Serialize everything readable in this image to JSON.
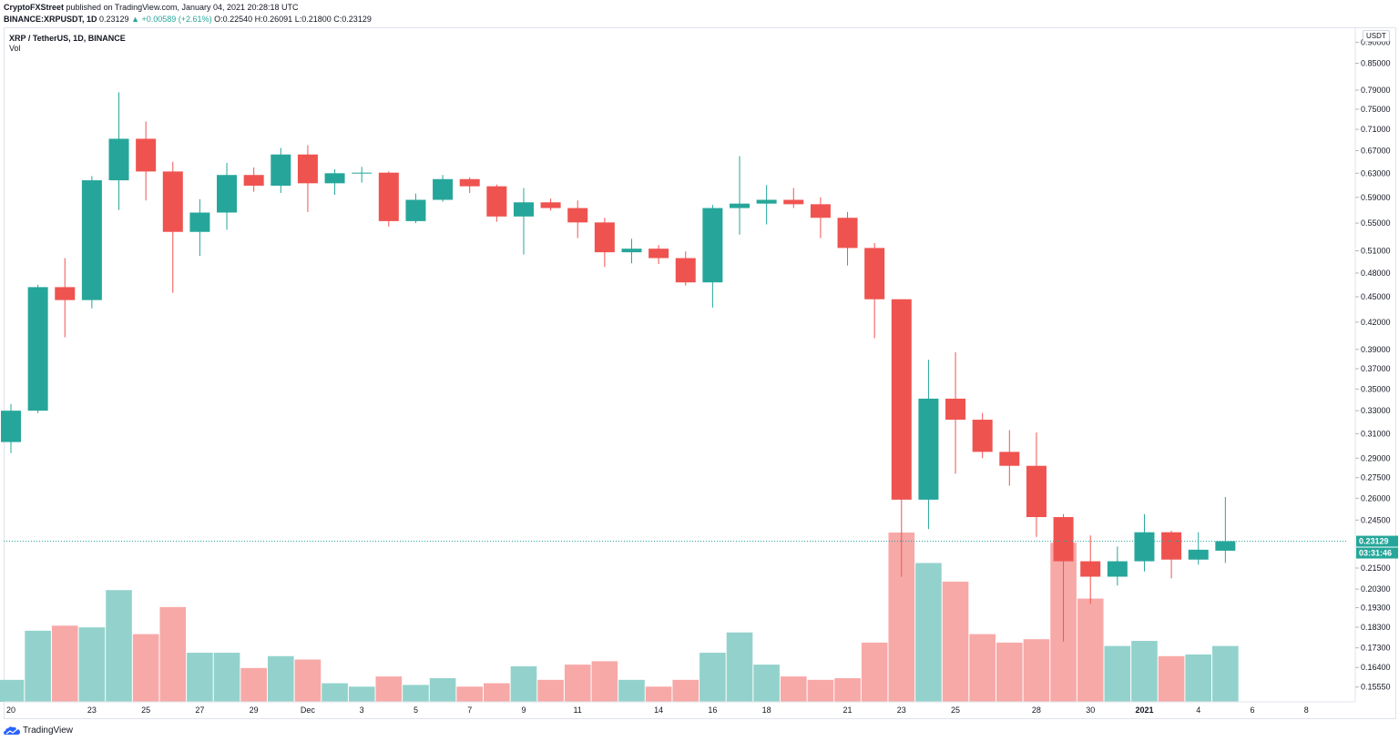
{
  "header": {
    "publisher": "CryptoFXStreet",
    "published_text": "published on TradingView.com, January 04, 2021 20:28:18 UTC",
    "symbol_line": "BINANCE:XRPUSDT, 1D",
    "last": "0.23129",
    "change": "▲ +0.00589 (+2.61%)",
    "o_label": "O:",
    "o": "0.22540",
    "h_label": "H:",
    "h": "0.26091",
    "l_label": "L:",
    "l": "0.21800",
    "c_label": "C:",
    "c": "0.23129"
  },
  "legend": {
    "title": "XRP / TetherUS, 1D, BINANCE",
    "vol": "Vol"
  },
  "price_axis": {
    "currency": "USDT",
    "labels": [
      "0.90000",
      "0.85000",
      "0.79000",
      "0.75000",
      "0.71000",
      "0.67000",
      "0.63000",
      "0.59000",
      "0.55000",
      "0.51000",
      "0.48000",
      "0.45000",
      "0.42000",
      "0.39000",
      "0.37000",
      "0.35000",
      "0.33000",
      "0.31000",
      "0.29000",
      "0.27500",
      "0.26000",
      "0.24500",
      "0.21500",
      "0.20300",
      "0.19300",
      "0.18300",
      "0.17300",
      "0.16400",
      "0.15550"
    ],
    "current_price": "0.23129",
    "countdown": "03:31:46"
  },
  "time_axis": {
    "labels": [
      "20",
      "23",
      "25",
      "27",
      "29",
      "Dec",
      "3",
      "5",
      "7",
      "9",
      "11",
      "14",
      "16",
      "18",
      "21",
      "23",
      "25",
      "28",
      "30",
      "2021",
      "4",
      "6",
      "8"
    ]
  },
  "colors": {
    "up": "#26a69a",
    "down": "#ef5350",
    "vol_up": "#93d2cc",
    "vol_down": "#f7a9a7"
  },
  "footer": {
    "brand": "TradingView"
  },
  "chart_data": {
    "type": "candlestick",
    "title": "XRP / TetherUS, 1D, BINANCE",
    "y_scale": "log",
    "candles": [
      {
        "date": "2020-11-20",
        "o": 0.303,
        "h": 0.336,
        "l": 0.294,
        "c": 0.33
      },
      {
        "date": "2020-11-21",
        "o": 0.33,
        "h": 0.465,
        "l": 0.328,
        "c": 0.462
      },
      {
        "date": "2020-11-22",
        "o": 0.462,
        "h": 0.5,
        "l": 0.403,
        "c": 0.446
      },
      {
        "date": "2020-11-23",
        "o": 0.446,
        "h": 0.625,
        "l": 0.436,
        "c": 0.618
      },
      {
        "date": "2020-11-24",
        "o": 0.618,
        "h": 0.785,
        "l": 0.57,
        "c": 0.692
      },
      {
        "date": "2020-11-25",
        "o": 0.692,
        "h": 0.725,
        "l": 0.585,
        "c": 0.633
      },
      {
        "date": "2020-11-26",
        "o": 0.633,
        "h": 0.65,
        "l": 0.455,
        "c": 0.537
      },
      {
        "date": "2020-11-27",
        "o": 0.537,
        "h": 0.587,
        "l": 0.503,
        "c": 0.566
      },
      {
        "date": "2020-11-28",
        "o": 0.566,
        "h": 0.648,
        "l": 0.54,
        "c": 0.627
      },
      {
        "date": "2020-11-29",
        "o": 0.627,
        "h": 0.64,
        "l": 0.599,
        "c": 0.609
      },
      {
        "date": "2020-11-30",
        "o": 0.609,
        "h": 0.675,
        "l": 0.597,
        "c": 0.663
      },
      {
        "date": "2020-12-01",
        "o": 0.663,
        "h": 0.68,
        "l": 0.567,
        "c": 0.613
      },
      {
        "date": "2020-12-02",
        "o": 0.613,
        "h": 0.637,
        "l": 0.594,
        "c": 0.63
      },
      {
        "date": "2020-12-03",
        "o": 0.63,
        "h": 0.641,
        "l": 0.614,
        "c": 0.631
      },
      {
        "date": "2020-12-04",
        "o": 0.631,
        "h": 0.633,
        "l": 0.545,
        "c": 0.553
      },
      {
        "date": "2020-12-05",
        "o": 0.553,
        "h": 0.596,
        "l": 0.55,
        "c": 0.586
      },
      {
        "date": "2020-12-06",
        "o": 0.586,
        "h": 0.627,
        "l": 0.583,
        "c": 0.62
      },
      {
        "date": "2020-12-07",
        "o": 0.62,
        "h": 0.623,
        "l": 0.597,
        "c": 0.608
      },
      {
        "date": "2020-12-08",
        "o": 0.608,
        "h": 0.611,
        "l": 0.552,
        "c": 0.56
      },
      {
        "date": "2020-12-09",
        "o": 0.56,
        "h": 0.605,
        "l": 0.505,
        "c": 0.582
      },
      {
        "date": "2020-12-10",
        "o": 0.582,
        "h": 0.588,
        "l": 0.569,
        "c": 0.573
      },
      {
        "date": "2020-12-11",
        "o": 0.573,
        "h": 0.585,
        "l": 0.528,
        "c": 0.551
      },
      {
        "date": "2020-12-12",
        "o": 0.551,
        "h": 0.558,
        "l": 0.488,
        "c": 0.508
      },
      {
        "date": "2020-12-13",
        "o": 0.508,
        "h": 0.527,
        "l": 0.493,
        "c": 0.513
      },
      {
        "date": "2020-12-14",
        "o": 0.513,
        "h": 0.518,
        "l": 0.492,
        "c": 0.5
      },
      {
        "date": "2020-12-15",
        "o": 0.5,
        "h": 0.509,
        "l": 0.464,
        "c": 0.468
      },
      {
        "date": "2020-12-16",
        "o": 0.468,
        "h": 0.578,
        "l": 0.437,
        "c": 0.573
      },
      {
        "date": "2020-12-17",
        "o": 0.573,
        "h": 0.66,
        "l": 0.533,
        "c": 0.58
      },
      {
        "date": "2020-12-18",
        "o": 0.58,
        "h": 0.61,
        "l": 0.548,
        "c": 0.586
      },
      {
        "date": "2020-12-19",
        "o": 0.586,
        "h": 0.605,
        "l": 0.573,
        "c": 0.579
      },
      {
        "date": "2020-12-20",
        "o": 0.579,
        "h": 0.59,
        "l": 0.528,
        "c": 0.558
      },
      {
        "date": "2020-12-21",
        "o": 0.558,
        "h": 0.567,
        "l": 0.49,
        "c": 0.514
      },
      {
        "date": "2020-12-22",
        "o": 0.514,
        "h": 0.521,
        "l": 0.402,
        "c": 0.447
      },
      {
        "date": "2020-12-23",
        "o": 0.447,
        "h": 0.447,
        "l": 0.21,
        "c": 0.259
      },
      {
        "date": "2020-12-24",
        "o": 0.259,
        "h": 0.379,
        "l": 0.239,
        "c": 0.341
      },
      {
        "date": "2020-12-25",
        "o": 0.341,
        "h": 0.387,
        "l": 0.278,
        "c": 0.322
      },
      {
        "date": "2020-12-26",
        "o": 0.322,
        "h": 0.328,
        "l": 0.29,
        "c": 0.295
      },
      {
        "date": "2020-12-27",
        "o": 0.295,
        "h": 0.313,
        "l": 0.269,
        "c": 0.284
      },
      {
        "date": "2020-12-28",
        "o": 0.284,
        "h": 0.311,
        "l": 0.234,
        "c": 0.247
      },
      {
        "date": "2020-12-29",
        "o": 0.247,
        "h": 0.249,
        "l": 0.176,
        "c": 0.219
      },
      {
        "date": "2020-12-30",
        "o": 0.219,
        "h": 0.235,
        "l": 0.195,
        "c": 0.21
      },
      {
        "date": "2020-12-31",
        "o": 0.21,
        "h": 0.228,
        "l": 0.205,
        "c": 0.219
      },
      {
        "date": "2021-01-01",
        "o": 0.219,
        "h": 0.249,
        "l": 0.213,
        "c": 0.237
      },
      {
        "date": "2021-01-02",
        "o": 0.237,
        "h": 0.238,
        "l": 0.209,
        "c": 0.22
      },
      {
        "date": "2021-01-03",
        "o": 0.22,
        "h": 0.237,
        "l": 0.217,
        "c": 0.226
      },
      {
        "date": "2021-01-04",
        "o": 0.2254,
        "h": 0.26091,
        "l": 0.218,
        "c": 0.23129
      }
    ],
    "volume_relative": [
      0.13,
      0.42,
      0.45,
      0.44,
      0.66,
      0.4,
      0.56,
      0.29,
      0.29,
      0.2,
      0.27,
      0.25,
      0.11,
      0.09,
      0.15,
      0.1,
      0.14,
      0.09,
      0.11,
      0.21,
      0.13,
      0.22,
      0.24,
      0.13,
      0.09,
      0.13,
      0.29,
      0.41,
      0.22,
      0.15,
      0.13,
      0.14,
      0.35,
      1.0,
      0.82,
      0.71,
      0.4,
      0.35,
      0.37,
      0.94,
      0.61,
      0.33,
      0.36,
      0.27,
      0.28,
      0.33
    ]
  }
}
